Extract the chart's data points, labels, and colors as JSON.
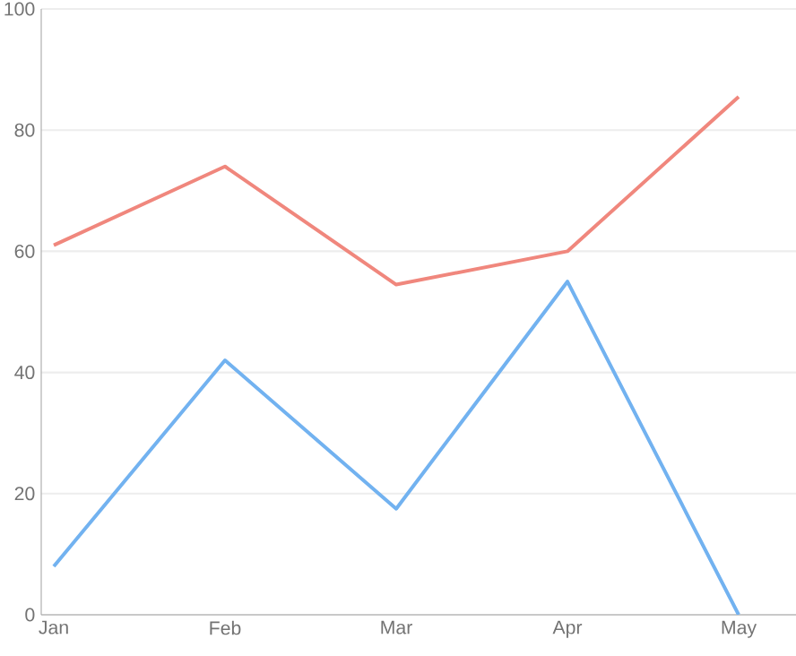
{
  "chart_data": {
    "type": "line",
    "categories": [
      "Jan",
      "Feb",
      "Mar",
      "Apr",
      "May",
      null
    ],
    "series": [
      {
        "color": "#f0877d",
        "values": [
          61,
          74,
          54.5,
          60,
          85.5,
          null
        ]
      },
      {
        "color": "#72b2f0",
        "values": [
          8,
          42,
          17.5,
          55,
          0,
          null
        ]
      }
    ],
    "ylim": [
      0,
      100
    ],
    "yticks": [
      0,
      20,
      40,
      60,
      80,
      100
    ],
    "grid": "y",
    "line_style": "solid",
    "marker": "none"
  }
}
